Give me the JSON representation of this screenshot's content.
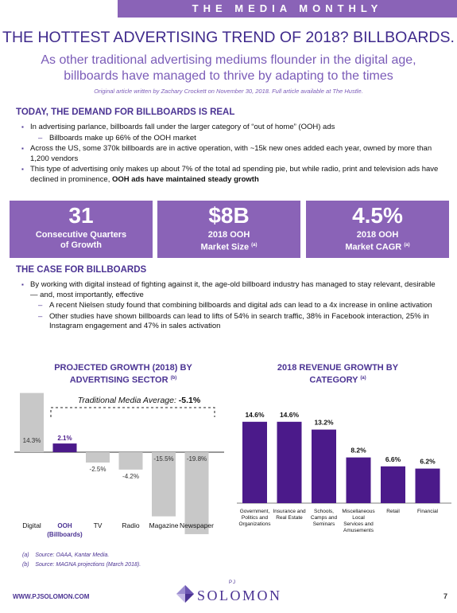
{
  "header": {
    "banner": "THE MEDIA MONTHLY",
    "title": "THE HOTTEST ADVERTISING TREND OF 2018? BILLBOARDS.",
    "subtitle": "As other traditional advertising mediums flounder in the digital age, billboards have managed to thrive by adapting to the times",
    "source": "Original article written by Zachary Crockett on November 30, 2018. Full article available at The Hustle."
  },
  "section1": {
    "heading": "TODAY, THE DEMAND FOR BILLBOARDS IS REAL",
    "b1": "In advertising parlance, billboards fall under the larger category of “out of home” (OOH) ads",
    "b1s1": "Billboards make up 66% of the OOH market",
    "b2": "Across the US, some 370k billboards are in active operation, with ~15k new ones added each year, owned by more than 1,200 vendors",
    "b3_pre": "This type of advertising only makes up about 7% of the total ad spending pie, but while radio, print and television ads have declined in prominence, ",
    "b3_bold": "OOH ads have maintained steady growth"
  },
  "stats": [
    {
      "value": "31",
      "label1": "Consecutive Quarters",
      "label2": "of Growth",
      "note": ""
    },
    {
      "value": "$8B",
      "label1": "2018 OOH",
      "label2": "Market Size",
      "note": "(a)"
    },
    {
      "value": "4.5%",
      "label1": "2018 OOH",
      "label2": "Market CAGR",
      "note": "(a)"
    }
  ],
  "section2": {
    "heading": "THE CASE FOR BILLBOARDS",
    "b1": "By working with digital instead of fighting against it, the age-old billboard industry has managed to stay relevant, desirable — and, most importantly, effective",
    "s1": "A recent Nielsen study found that combining billboards and digital ads can lead to a 4x increase in online activation",
    "s2": "Other studies have shown billboards can lead to lifts of 54% in search traffic, 38% in Facebook interaction, 25% in Instagram engagement and 47% in sales activation"
  },
  "chart_left_title": {
    "line1": "PROJECTED GROWTH (2018) BY",
    "line2": "ADVERTISING SECTOR",
    "note": "(b)"
  },
  "chart_right_title": {
    "line1": "2018 REVENUE GROWTH BY",
    "line2": "CATEGORY",
    "note": "(a)"
  },
  "chart_data": [
    {
      "type": "bar",
      "title": "PROJECTED GROWTH (2018) BY ADVERTISING SECTOR",
      "categories": [
        "Digital",
        "OOH (Billboards)",
        "TV",
        "Radio",
        "Magazine",
        "Newspaper"
      ],
      "values": [
        14.3,
        2.1,
        -2.5,
        -4.2,
        -15.5,
        -19.8
      ],
      "labels": [
        "14.3%",
        "2.1%",
        "-2.5%",
        "-4.2%",
        "-15.5%",
        "-19.8%"
      ],
      "annotation_text": "Traditional Media Average: ",
      "annotation_value": "-5.1%",
      "highlight": "OOH (Billboards)",
      "colors": {
        "normal": "#c8c8c8",
        "highlight": "#4b1a8a"
      }
    },
    {
      "type": "bar",
      "title": "2018 REVENUE GROWTH BY CATEGORY",
      "categories": [
        "Government, Politics and Organizations",
        "Insurance and Real Estate",
        "Schools, Camps and Seminars",
        "Miscellaneous Local Services and Amusements",
        "Retail",
        "Financial"
      ],
      "category_lines": [
        [
          "Government,",
          "Politics and",
          "Organizations"
        ],
        [
          "Insurance and",
          "Real Estate"
        ],
        [
          "Schools,",
          "Camps and",
          "Seminars"
        ],
        [
          "Miscellaneous",
          "Local",
          "Services and",
          "Amusements"
        ],
        [
          "Retail"
        ],
        [
          "Financial"
        ]
      ],
      "values": [
        14.6,
        14.6,
        13.2,
        8.2,
        6.6,
        6.2
      ],
      "labels": [
        "14.6%",
        "14.6%",
        "13.2%",
        "8.2%",
        "6.6%",
        "6.2%"
      ],
      "colors": {
        "bar": "#4b1a8a"
      }
    }
  ],
  "footnotes": {
    "a_marker": "(a)",
    "a_text": "Source: OAAA, Kantar Media.",
    "b_marker": "(b)",
    "b_text": "Source: MAGNA projections (March 2018)."
  },
  "footer": {
    "url": "WWW.PJSOLOMON.COM",
    "logo_pj": "PJ",
    "logo_name": "SOLOMON",
    "page": "7"
  },
  "theme": {
    "accent": "#4b3393",
    "stat_bg": "#8a63b7"
  }
}
